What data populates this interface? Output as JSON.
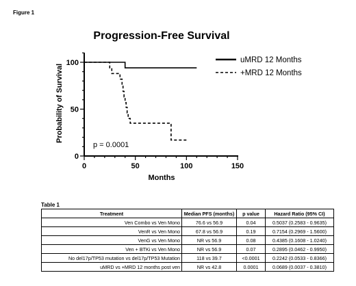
{
  "figure_label": "Figure 1",
  "table_label": "Table 1",
  "chart_data": {
    "type": "line",
    "title": "Progression-Free Survival",
    "xlabel": "Months",
    "ylabel": "Probability of Survival",
    "xlim": [
      0,
      150
    ],
    "ylim": [
      0,
      100
    ],
    "x_ticks": [
      0,
      50,
      100,
      150
    ],
    "y_ticks": [
      0,
      50,
      100
    ],
    "legend_position": "top-right",
    "annotation": "p = 0.0001",
    "series": [
      {
        "name": "uMRD 12 Months",
        "style": "solid",
        "color": "#000000",
        "points": [
          [
            0,
            100
          ],
          [
            40,
            100
          ],
          [
            40,
            94
          ],
          [
            110,
            94
          ]
        ]
      },
      {
        "name": "+MRD 12 Months",
        "style": "dashed",
        "color": "#000000",
        "points": [
          [
            0,
            100
          ],
          [
            25,
            100
          ],
          [
            25,
            94
          ],
          [
            27,
            94
          ],
          [
            27,
            88
          ],
          [
            35,
            88
          ],
          [
            35,
            82
          ],
          [
            37,
            82
          ],
          [
            37,
            76
          ],
          [
            38,
            76
          ],
          [
            38,
            69
          ],
          [
            39,
            69
          ],
          [
            39,
            63
          ],
          [
            40,
            63
          ],
          [
            40,
            57
          ],
          [
            41,
            57
          ],
          [
            41,
            52
          ],
          [
            42,
            52
          ],
          [
            42,
            46
          ],
          [
            43,
            46
          ],
          [
            43,
            40
          ],
          [
            45,
            40
          ],
          [
            45,
            35
          ],
          [
            85,
            35
          ],
          [
            85,
            17
          ],
          [
            100,
            17
          ]
        ]
      }
    ]
  },
  "table": {
    "headers": [
      "Treatment",
      "Median PFS (months)",
      "p value",
      "Hazard Ratio (95% CI)"
    ],
    "rows": [
      [
        "Ven Combo vs Ven Mono",
        "76.6 vs 56.9",
        "0.04",
        "0.5037 (0.2583 - 0.9635)"
      ],
      [
        "VenR vs Ven Mono",
        "67.8 vs 56.9",
        "0.19",
        "0.7154 (0.2969 - 1.5600)"
      ],
      [
        "VenG vs Ven Mono",
        "NR vs 56.9",
        "0.08",
        "0.4385 (0.1608 - 1.0240)"
      ],
      [
        "Ven + BTKi vs Ven Mono",
        "NR vs 56.9",
        "0.07",
        "0.2895 (0.0462 - 0.9950)"
      ],
      [
        "No del17p/TP53 mutation vs del17p/TP53 Mutation",
        "118 vs 39.7",
        "<0.0001",
        "0.2242 (0.0533 - 0.8366)"
      ],
      [
        "uMRD vs +MRD 12 months post ven",
        "NR vs 42.8",
        "0.0001",
        "0.0689 (0.0037 - 0.3810)"
      ]
    ]
  }
}
